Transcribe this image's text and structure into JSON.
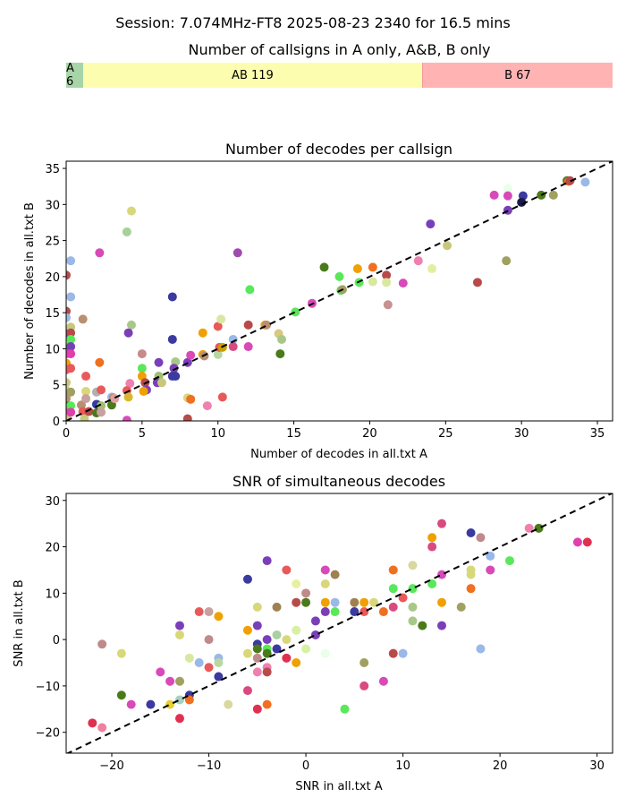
{
  "suptitle": "Session: 7.074MHz-FT8 2025-08-23 2340 for 16.5 mins",
  "colors": {
    "a_only": "#a8d5a8",
    "ab": "#fdfdb0",
    "b_only": "#ffb3b3",
    "b_only_edge": "#f29a9a",
    "diagonal": "#000000"
  },
  "chart_data": [
    {
      "type": "stacked-bar",
      "title": "Number of callsigns in A only, A&B, B only",
      "segments": [
        {
          "name": "A",
          "value": 6,
          "label": "A 6"
        },
        {
          "name": "AB",
          "value": 119,
          "label": "AB 119"
        },
        {
          "name": "B",
          "value": 67,
          "label": "B 67"
        }
      ]
    },
    {
      "type": "scatter",
      "title": "Number of decodes per callsign",
      "xlabel": "Number of decodes in all.txt A",
      "ylabel": "Number of decodes in all.txt B",
      "xlim": [
        0,
        36
      ],
      "ylim": [
        0,
        36
      ],
      "xticks": [
        0,
        5,
        10,
        15,
        20,
        25,
        30,
        35
      ],
      "yticks": [
        0,
        5,
        10,
        15,
        20,
        25,
        30,
        35
      ],
      "diagonal": true,
      "points": [
        [
          0,
          20.2,
          "#b84a4a"
        ],
        [
          0,
          15.2,
          "#b84a4a"
        ],
        [
          0,
          14.3,
          "#9ab8e8"
        ],
        [
          0,
          12.1,
          "#7a3fb8"
        ],
        [
          0,
          10.3,
          "#59e859"
        ],
        [
          0,
          9.3,
          "#e03fae"
        ],
        [
          0,
          8,
          "#f0a000"
        ],
        [
          0,
          7.1,
          "#e85a5a"
        ],
        [
          0,
          5.3,
          "#c8c87a"
        ],
        [
          0,
          4.2,
          "#c8c87a"
        ],
        [
          0,
          3.1,
          "#b89070"
        ],
        [
          0,
          2.1,
          "#4a7a1a"
        ],
        [
          0,
          1.3,
          "#e03fae"
        ],
        [
          0,
          0.5,
          "#c8c87a"
        ],
        [
          0.3,
          22.2,
          "#9ab8e8"
        ],
        [
          0.3,
          17.2,
          "#9ab8e8"
        ],
        [
          0.3,
          13,
          "#c8c87a"
        ],
        [
          0.3,
          12.2,
          "#b84a4a"
        ],
        [
          0.3,
          11.3,
          "#59e859"
        ],
        [
          0.3,
          10.3,
          "#7a3fb8"
        ],
        [
          0.3,
          9.3,
          "#e03fae"
        ],
        [
          0.3,
          7.3,
          "#e85a5a"
        ],
        [
          0.3,
          4,
          "#a0a060"
        ],
        [
          0.3,
          2.1,
          "#59e859"
        ],
        [
          0.3,
          1.2,
          "#e03fae"
        ],
        [
          1.1,
          14.1,
          "#b89070"
        ],
        [
          1,
          2.2,
          "#b89070"
        ],
        [
          1.1,
          1.3,
          "#e85a5a"
        ],
        [
          1.2,
          0.3,
          "#c8c87a"
        ],
        [
          1.3,
          6.2,
          "#e85a5a"
        ],
        [
          1.3,
          4.1,
          "#d8d87a"
        ],
        [
          1.3,
          3.1,
          "#c8a0a0"
        ],
        [
          1.5,
          1.3,
          "#b84a4a"
        ],
        [
          2.2,
          23.3,
          "#d84ab8"
        ],
        [
          2.2,
          8.1,
          "#f07020"
        ],
        [
          2,
          4,
          "#b0b0b0"
        ],
        [
          2.3,
          4.3,
          "#e85a5a"
        ],
        [
          2.1,
          2.2,
          "#e03fae"
        ],
        [
          2,
          2.3,
          "#3a3aa0"
        ],
        [
          2.3,
          2.1,
          "#a0c070"
        ],
        [
          2,
          1.1,
          "#4a7a1a"
        ],
        [
          2.3,
          1.2,
          "#c8a0a0"
        ],
        [
          3,
          3.3,
          "#9ab8e8"
        ],
        [
          3.1,
          3.2,
          "#b89070"
        ],
        [
          3,
          2.2,
          "#4a7a1a"
        ],
        [
          3.2,
          3.1,
          "#e0a0a0"
        ],
        [
          4,
          26.2,
          "#a8d09a"
        ],
        [
          4.3,
          29.1,
          "#d8d87a"
        ],
        [
          4.3,
          13.3,
          "#a8c888"
        ],
        [
          4.1,
          12.2,
          "#7a3fb8"
        ],
        [
          4.2,
          5.2,
          "#f080b0"
        ],
        [
          4,
          4.2,
          "#e85a5a"
        ],
        [
          4.1,
          3.3,
          "#d8b830"
        ],
        [
          4,
          0.1,
          "#d84ab8"
        ],
        [
          5,
          9.3,
          "#c88a8a"
        ],
        [
          5,
          7.3,
          "#59e859"
        ],
        [
          5,
          6.2,
          "#f0a000"
        ],
        [
          5.2,
          5.3,
          "#b84a4a"
        ],
        [
          5.3,
          4.3,
          "#7a3fb8"
        ],
        [
          5.1,
          4.1,
          "#f0a000"
        ],
        [
          6.1,
          8.1,
          "#7a3fb8"
        ],
        [
          6.1,
          6.2,
          "#a0c070"
        ],
        [
          6,
          5.3,
          "#7a3fb8"
        ],
        [
          6.3,
          5.3,
          "#c8c87a"
        ],
        [
          7,
          17.2,
          "#3a3aa0"
        ],
        [
          7,
          11.3,
          "#3a3aa0"
        ],
        [
          7.2,
          8.2,
          "#a8c888"
        ],
        [
          7.1,
          7.3,
          "#7a3fb8"
        ],
        [
          7,
          6.2,
          "#3a3aa0"
        ],
        [
          7.2,
          6.2,
          "#3a3aa0"
        ],
        [
          8,
          3.2,
          "#d8d87a"
        ],
        [
          8.2,
          3,
          "#f07020"
        ],
        [
          8,
          8.1,
          "#7a3fb8"
        ],
        [
          8.2,
          9.1,
          "#d84ab8"
        ],
        [
          8,
          0.3,
          "#b84a4a"
        ],
        [
          9,
          12.2,
          "#f0a000"
        ],
        [
          9,
          9.2,
          "#f0a000"
        ],
        [
          9.1,
          9,
          "#b89070"
        ],
        [
          9.3,
          2.1,
          "#f080b0"
        ],
        [
          10,
          13.1,
          "#e85a5a"
        ],
        [
          10,
          9.2,
          "#b8d8a0"
        ],
        [
          10.2,
          14.1,
          "#d8e8a0"
        ],
        [
          10.1,
          10.2,
          "#e85a5a"
        ],
        [
          10.3,
          3.3,
          "#e85a5a"
        ],
        [
          10.3,
          10.2,
          "#c8a000"
        ],
        [
          11.3,
          23.3,
          "#a04ab0"
        ],
        [
          11,
          11.3,
          "#9ab8e8"
        ],
        [
          11,
          10.3,
          "#d84a80"
        ],
        [
          12.1,
          18.2,
          "#59e859"
        ],
        [
          12,
          13.3,
          "#b84a4a"
        ],
        [
          12,
          10.3,
          "#d84ab8"
        ],
        [
          13.1,
          13.3,
          "#f0a000"
        ],
        [
          13.2,
          13.3,
          "#b89070"
        ],
        [
          14,
          12.1,
          "#d8c880"
        ],
        [
          14.2,
          11.3,
          "#a8c888"
        ],
        [
          14.1,
          9.3,
          "#4a7a1a"
        ],
        [
          15.1,
          15.1,
          "#59e859"
        ],
        [
          16.2,
          16.3,
          "#d84ab8"
        ],
        [
          17,
          21.3,
          "#4a7a1a"
        ],
        [
          18,
          20,
          "#59e859"
        ],
        [
          18.1,
          18.1,
          "#59e859"
        ],
        [
          18.2,
          18.2,
          "#a0a060"
        ],
        [
          19.2,
          21.1,
          "#f0a000"
        ],
        [
          20.2,
          21.3,
          "#f07020"
        ],
        [
          19.3,
          19.2,
          "#59e859"
        ],
        [
          20.2,
          19.3,
          "#d8e8a0"
        ],
        [
          21.1,
          20.2,
          "#b84a4a"
        ],
        [
          21.1,
          19.2,
          "#d8e8a0"
        ],
        [
          21.2,
          16.1,
          "#c89090"
        ],
        [
          22.2,
          19.1,
          "#d84ab8"
        ],
        [
          23.2,
          22.2,
          "#f080b0"
        ],
        [
          24,
          27.3,
          "#7a3fb8"
        ],
        [
          24.1,
          21.1,
          "#e0f0a0"
        ],
        [
          25.1,
          24.3,
          "#c8c87a"
        ],
        [
          27.1,
          19.2,
          "#b84a4a"
        ],
        [
          28.2,
          31.3,
          "#d84ab8"
        ],
        [
          29.1,
          32.2,
          "#e8ffe8"
        ],
        [
          29.1,
          31.2,
          "#d84ab8"
        ],
        [
          29.1,
          29.2,
          "#7a3fb8"
        ],
        [
          29,
          22.2,
          "#a0a060"
        ],
        [
          30.1,
          31.2,
          "#3a3aa0"
        ],
        [
          30,
          30.3,
          "#1a1a4a"
        ],
        [
          31.3,
          31.3,
          "#4a7a1a"
        ],
        [
          32.1,
          31.3,
          "#a0a060"
        ],
        [
          33,
          33.3,
          "#4a7a1a"
        ],
        [
          33.1,
          33.2,
          "#f07020"
        ],
        [
          33.2,
          33.3,
          "#b84a4a"
        ],
        [
          34.2,
          33.1,
          "#9ab8e8"
        ]
      ]
    },
    {
      "type": "scatter",
      "title": "SNR of simultaneous decodes",
      "xlabel": "SNR in all.txt A",
      "ylabel": "SNR in all.txt B",
      "xlim": [
        -24.7,
        31.6
      ],
      "ylim": [
        -24.5,
        31.5
      ],
      "xticks": [
        -20,
        -10,
        0,
        10,
        20,
        30
      ],
      "yticks": [
        -20,
        -10,
        0,
        10,
        20,
        30
      ],
      "tick_labels": [
        "−20",
        "−10",
        "0",
        "10",
        "20",
        "30"
      ],
      "diagonal": true,
      "points": [
        [
          -22,
          -18,
          "#e03050"
        ],
        [
          -21,
          -1,
          "#c08a8a"
        ],
        [
          -21,
          -19,
          "#f080a0"
        ],
        [
          -19,
          -3,
          "#d8d87a"
        ],
        [
          -19,
          -12,
          "#4a7a1a"
        ],
        [
          -18,
          -14,
          "#d84ab8"
        ],
        [
          -16,
          -14,
          "#3a3aa0"
        ],
        [
          -15,
          -7,
          "#d84ab8"
        ],
        [
          -14,
          -9,
          "#d84ab8"
        ],
        [
          -14,
          -14,
          "#e8d030"
        ],
        [
          -13,
          3,
          "#7a3fb8"
        ],
        [
          -13,
          1,
          "#d8d87a"
        ],
        [
          -13,
          -9,
          "#a0a060"
        ],
        [
          -13,
          -13,
          "#a8d0c0"
        ],
        [
          -13,
          -17,
          "#e03050"
        ],
        [
          -12,
          -4,
          "#d8e8a0"
        ],
        [
          -12,
          -12,
          "#3a3aa0"
        ],
        [
          -12,
          -13,
          "#f07020"
        ],
        [
          -11,
          6,
          "#e85a5a"
        ],
        [
          -11,
          -5,
          "#9ab8e8"
        ],
        [
          -10,
          6,
          "#c8a0a0"
        ],
        [
          -10,
          0,
          "#c08a8a"
        ],
        [
          -10,
          -6,
          "#e85a5a"
        ],
        [
          -9,
          5,
          "#f0a000"
        ],
        [
          -9,
          -4,
          "#9ab8e8"
        ],
        [
          -9,
          -5,
          "#b8d8a0"
        ],
        [
          -9,
          -8,
          "#3a3aa0"
        ],
        [
          -8,
          -14,
          "#d8d8a0"
        ],
        [
          -6,
          13,
          "#3a3aa0"
        ],
        [
          -6,
          2,
          "#f0a000"
        ],
        [
          -6,
          -3,
          "#d8d87a"
        ],
        [
          -6,
          -11,
          "#d84a80"
        ],
        [
          -5,
          7,
          "#d8d87a"
        ],
        [
          -5,
          3,
          "#7a3fb8"
        ],
        [
          -5,
          -1,
          "#3a3aa0"
        ],
        [
          -5,
          -2,
          "#4a7a1a"
        ],
        [
          -5,
          -4,
          "#c08a8a"
        ],
        [
          -5,
          -7,
          "#f080b0"
        ],
        [
          -5,
          -15,
          "#e03050"
        ],
        [
          -4,
          17,
          "#7a3fb8"
        ],
        [
          -4,
          0,
          "#7a3fb8"
        ],
        [
          -4,
          -2,
          "#59e859"
        ],
        [
          -4,
          -3,
          "#4a7a1a"
        ],
        [
          -4,
          -6,
          "#f080b0"
        ],
        [
          -4,
          -7,
          "#b84a4a"
        ],
        [
          -4,
          -14,
          "#f07020"
        ],
        [
          -3,
          7,
          "#a08050"
        ],
        [
          -3,
          1,
          "#a8d0a0"
        ],
        [
          -3,
          -2,
          "#3a3aa0"
        ],
        [
          -2,
          15,
          "#e85a5a"
        ],
        [
          -2,
          0,
          "#d8d87a"
        ],
        [
          -2,
          -4,
          "#e03050"
        ],
        [
          -1,
          12,
          "#e8f0a0"
        ],
        [
          -1,
          8,
          "#b84a4a"
        ],
        [
          -1,
          2,
          "#d8f0a0"
        ],
        [
          -1,
          -5,
          "#f0a000"
        ],
        [
          0,
          10,
          "#c08a8a"
        ],
        [
          0,
          8,
          "#4a7a1a"
        ],
        [
          0,
          -2,
          "#d8f0a0"
        ],
        [
          1,
          4,
          "#7a3fb8"
        ],
        [
          1,
          1,
          "#7a3fb8"
        ],
        [
          2,
          15,
          "#d84ab8"
        ],
        [
          2,
          12,
          "#d8d87a"
        ],
        [
          2,
          8,
          "#f0a000"
        ],
        [
          2,
          6,
          "#7a3fb8"
        ],
        [
          2,
          -3,
          "#e8ffe8"
        ],
        [
          3,
          14,
          "#a08050"
        ],
        [
          3,
          8,
          "#9ab8e8"
        ],
        [
          3,
          6,
          "#59e859"
        ],
        [
          4,
          -15,
          "#59e859"
        ],
        [
          5,
          8,
          "#a08050"
        ],
        [
          5,
          6,
          "#3a3aa0"
        ],
        [
          6,
          8,
          "#f0a000"
        ],
        [
          6,
          6,
          "#e85a5a"
        ],
        [
          6,
          -5,
          "#a0a060"
        ],
        [
          6,
          -10,
          "#d84a80"
        ],
        [
          7,
          8,
          "#d8d87a"
        ],
        [
          8,
          6,
          "#f07020"
        ],
        [
          8,
          -9,
          "#d84ab8"
        ],
        [
          9,
          15,
          "#f07020"
        ],
        [
          9,
          11,
          "#59e859"
        ],
        [
          9,
          7,
          "#d84a80"
        ],
        [
          9,
          -3,
          "#b84a4a"
        ],
        [
          10,
          9,
          "#e85a5a"
        ],
        [
          10,
          -3,
          "#9ab8e8"
        ],
        [
          11,
          16,
          "#d8d8a0"
        ],
        [
          11,
          11,
          "#59e859"
        ],
        [
          11,
          7,
          "#a8c888"
        ],
        [
          11,
          4,
          "#a8c888"
        ],
        [
          12,
          3,
          "#4a7a1a"
        ],
        [
          13,
          22,
          "#f0a000"
        ],
        [
          13,
          20,
          "#d84a80"
        ],
        [
          13,
          12,
          "#59e859"
        ],
        [
          14,
          25,
          "#d84a80"
        ],
        [
          14,
          14,
          "#d84ab8"
        ],
        [
          14,
          8,
          "#f0a000"
        ],
        [
          14,
          3,
          "#7a3fb8"
        ],
        [
          16,
          7,
          "#a0a060"
        ],
        [
          17,
          23,
          "#3a3aa0"
        ],
        [
          17,
          15,
          "#d8d87a"
        ],
        [
          17,
          14,
          "#d8d87a"
        ],
        [
          17,
          11,
          "#f07020"
        ],
        [
          18,
          22,
          "#c08a8a"
        ],
        [
          18,
          -2,
          "#9ab8e8"
        ],
        [
          19,
          18,
          "#9ab8e8"
        ],
        [
          19,
          15,
          "#d84ab8"
        ],
        [
          21,
          17,
          "#59e859"
        ],
        [
          23,
          24,
          "#f080b0"
        ],
        [
          24,
          24,
          "#4a7a1a"
        ],
        [
          28,
          21,
          "#e03fae"
        ],
        [
          29,
          21,
          "#e03050"
        ]
      ]
    }
  ]
}
